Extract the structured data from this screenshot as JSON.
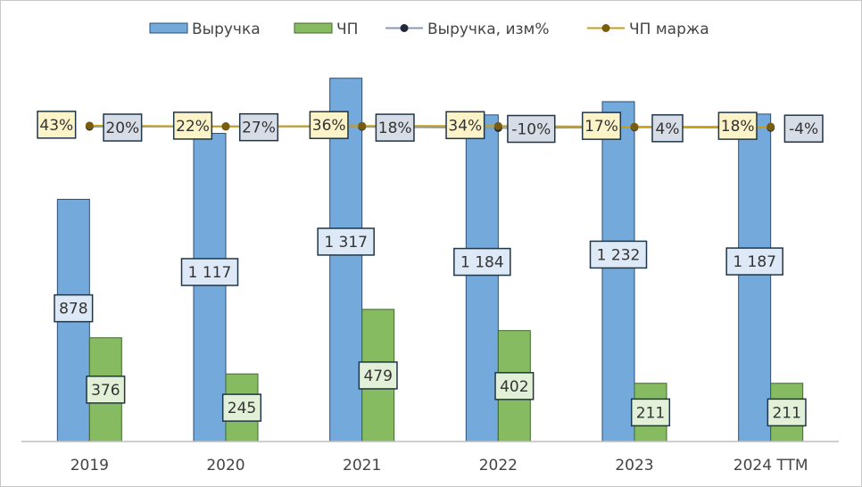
{
  "chart_data": {
    "type": "bar",
    "categories": [
      "2019",
      "2020",
      "2021",
      "2022",
      "2023",
      "2024 TTM"
    ],
    "series": [
      {
        "name": "Выручка",
        "kind": "bar",
        "color": "#74a9dc",
        "values": [
          878,
          1117,
          1317,
          1184,
          1232,
          1187
        ],
        "labels": [
          "878",
          "1 117",
          "1 317",
          "1 184",
          "1 232",
          "1 187"
        ]
      },
      {
        "name": "ЧП",
        "kind": "bar",
        "color": "#86bb61",
        "values": [
          376,
          245,
          479,
          402,
          211,
          211
        ],
        "labels": [
          "376",
          "245",
          "479",
          "402",
          "211",
          "211"
        ]
      },
      {
        "name": "Выручка, изм%",
        "kind": "line",
        "color": "#8a9bb0",
        "marker_color": "#1f2a38",
        "values": [
          20,
          27,
          18,
          -10,
          4,
          -4
        ],
        "labels": [
          "20%",
          "27%",
          "18%",
          "-10%",
          "4%",
          "-4%"
        ]
      },
      {
        "name": "ЧП маржа",
        "kind": "line",
        "color": "#c8a018",
        "marker_color": "#7a5c10",
        "values": [
          43,
          22,
          36,
          34,
          17,
          18
        ],
        "labels": [
          "43%",
          "22%",
          "36%",
          "34%",
          "17%",
          "18%"
        ]
      }
    ],
    "ylim": [
      0,
      1400
    ],
    "legend_position": "top",
    "grid": false,
    "colors": {
      "bar_label_fill_blue": "#dde9f6",
      "bar_label_fill_green": "#e3f0d8",
      "rev_change_label_fill": "#d7dde6",
      "margin_label_fill": "#fdf3c8",
      "label_border": "#1f3548"
    }
  }
}
